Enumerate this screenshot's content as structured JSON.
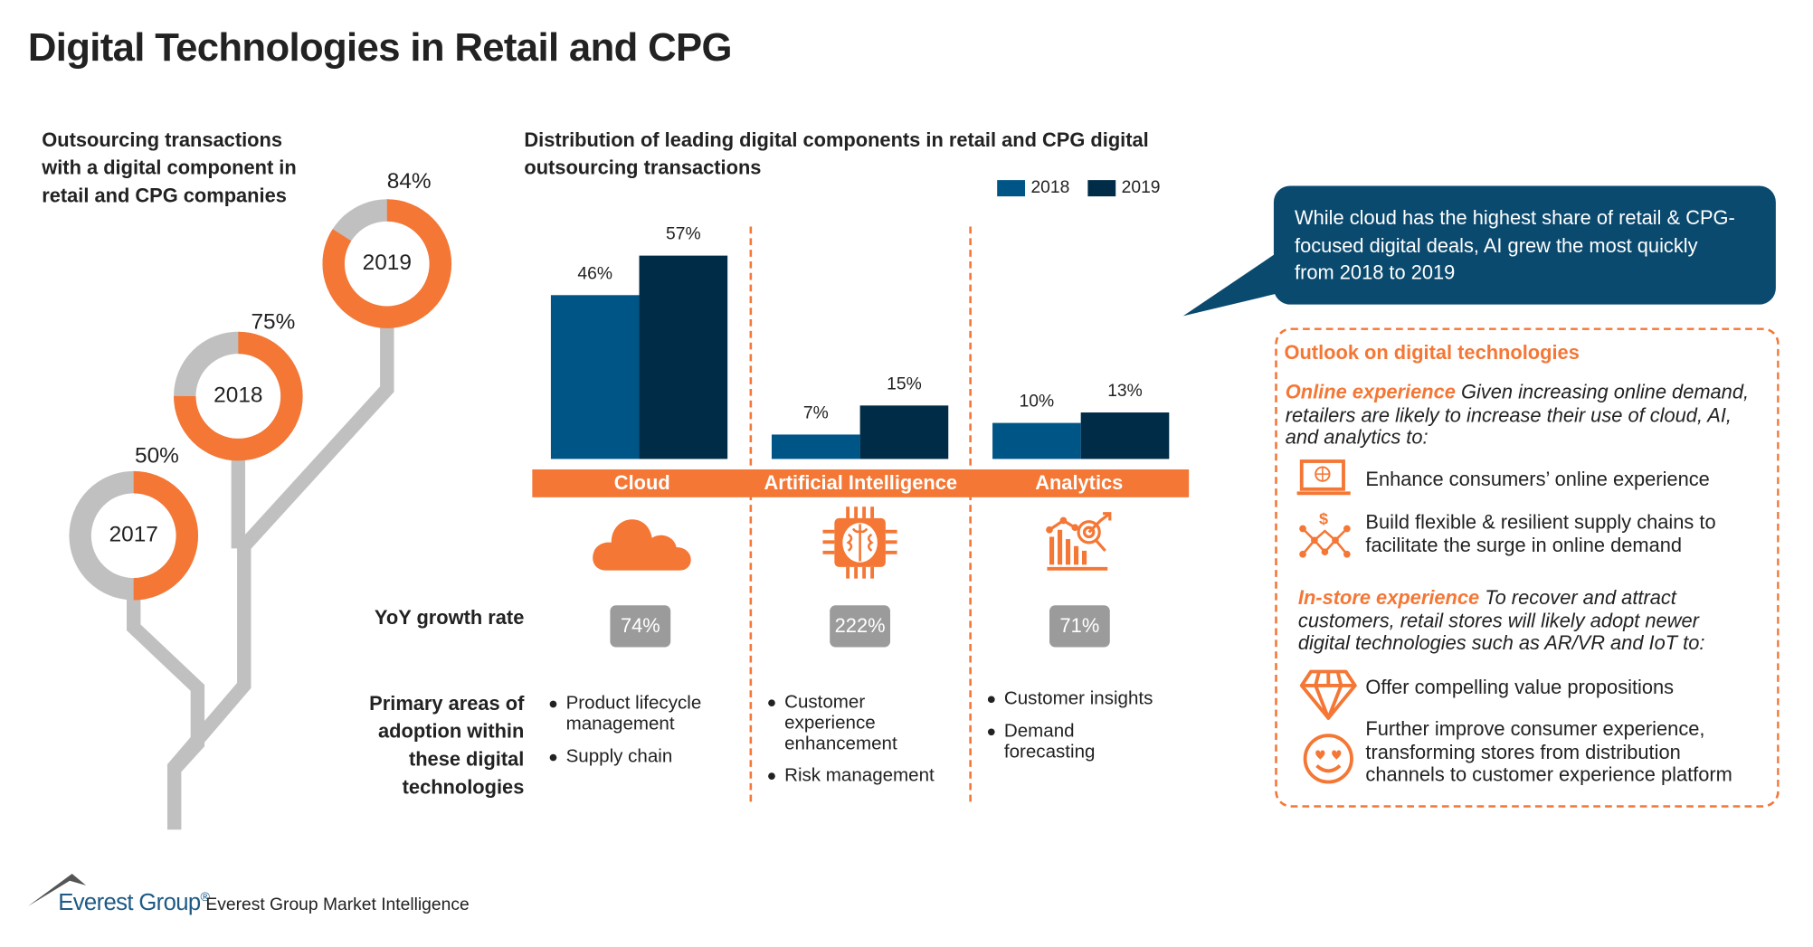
{
  "title": "Digital Technologies in Retail and CPG",
  "left_panel": {
    "heading_lines": [
      "Outsourcing transactions",
      "with a digital component in",
      "retail and CPG companies"
    ],
    "donuts": [
      {
        "year": "2017",
        "value": 50,
        "label": "50%"
      },
      {
        "year": "2018",
        "value": 75,
        "label": "75%"
      },
      {
        "year": "2019",
        "value": 84,
        "label": "84%"
      }
    ]
  },
  "colors": {
    "orange": "#f47735",
    "bar_2018": "#005587",
    "bar_2019": "#002c47",
    "gray": "#c0c0c0",
    "callout": "#0b4a6f",
    "badge": "#9b9b9b"
  },
  "chart_data": {
    "type": "bar",
    "title_lines": [
      "Distribution of leading digital components in retail and CPG digital",
      "outsourcing transactions"
    ],
    "categories": [
      "Cloud",
      "Artificial Intelligence",
      "Analytics"
    ],
    "series": [
      {
        "name": "2018",
        "values": [
          46,
          7,
          10
        ],
        "labels": [
          "46%",
          "7%",
          "10%"
        ]
      },
      {
        "name": "2019",
        "values": [
          57,
          15,
          13
        ],
        "labels": [
          "57%",
          "15%",
          "13%"
        ]
      }
    ],
    "unit": "%",
    "legend_placement": "top-right",
    "grid": false
  },
  "categories_info": [
    {
      "icon": "cloud-icon",
      "yoy": "74%",
      "areas": [
        [
          "Product lifecycle",
          "management"
        ],
        [
          "Supply chain"
        ]
      ]
    },
    {
      "icon": "ai-chip-brain-icon",
      "yoy": "222%",
      "areas": [
        [
          "Customer",
          "experience",
          "enhancement"
        ],
        [
          "Risk management"
        ]
      ]
    },
    {
      "icon": "analytics-chart-icon",
      "yoy": "71%",
      "areas": [
        [
          "Customer insights"
        ],
        [
          "Demand",
          "forecasting"
        ]
      ]
    }
  ],
  "row_labels": {
    "yoy": "YoY growth rate",
    "areas_lines": [
      "Primary areas of",
      "adoption within",
      "these digital",
      "technologies"
    ]
  },
  "callout": {
    "lines": [
      "While cloud has the highest share of retail & CPG-",
      "focused digital deals, AI grew the most quickly",
      "from 2018 to 2019"
    ]
  },
  "outlook": {
    "heading": "Outlook on digital technologies",
    "online": {
      "label": "Online experience",
      "text_lines": [
        " Given increasing online demand,",
        "retailers are likely to increase their use of cloud, AI,",
        "and analytics to:"
      ]
    },
    "online_items": [
      {
        "icon": "laptop-globe-icon",
        "lines": [
          "Enhance consumers’ online experience"
        ]
      },
      {
        "icon": "supply-chain-network-icon",
        "lines": [
          "Build flexible & resilient supply chains to",
          "facilitate the surge in online demand"
        ]
      }
    ],
    "instore": {
      "label": "In-store experience",
      "text_lines": [
        " To recover and attract",
        "customers, retail stores will likely adopt newer",
        "digital technologies such as AR/VR and IoT to:"
      ]
    },
    "instore_items": [
      {
        "icon": "diamond-icon",
        "lines": [
          "Offer compelling value propositions"
        ]
      },
      {
        "icon": "smiley-hearts-icon",
        "lines": [
          "Further improve consumer experience,",
          "transforming stores from distribution",
          "channels to customer experience platform"
        ]
      }
    ]
  },
  "footer": {
    "logo_text": "Everest Group",
    "logo_mark": "®",
    "source": "Everest Group Market Intelligence"
  }
}
